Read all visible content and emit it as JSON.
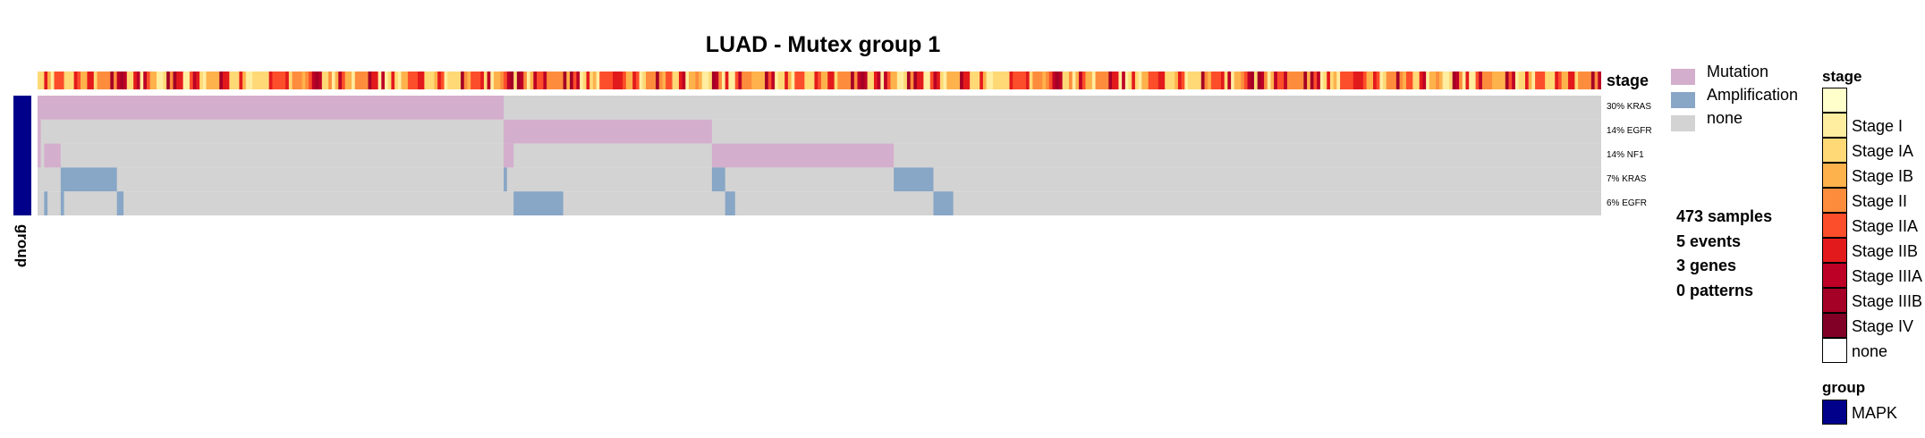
{
  "chart_data": {
    "type": "heatmap",
    "title": "LUAD - Mutex group 1",
    "n_samples": 473,
    "rows": [
      {
        "label": "30% KRAS",
        "gene": "KRAS",
        "percent": 30,
        "alteration": "Mutation",
        "segments": [
          {
            "start": 0,
            "end": 141,
            "type": "Mutation"
          }
        ]
      },
      {
        "label": "14% EGFR",
        "gene": "EGFR",
        "percent": 14,
        "alteration": "Mutation",
        "segments": [
          {
            "start": 0,
            "end": 1,
            "type": "Mutation"
          },
          {
            "start": 141,
            "end": 204,
            "type": "Mutation"
          }
        ]
      },
      {
        "label": "14% NF1",
        "gene": "NF1",
        "percent": 14,
        "alteration": "Mutation",
        "segments": [
          {
            "start": 0,
            "end": 1,
            "type": "Mutation"
          },
          {
            "start": 2,
            "end": 7,
            "type": "Mutation"
          },
          {
            "start": 141,
            "end": 144,
            "type": "Mutation"
          },
          {
            "start": 204,
            "end": 259,
            "type": "Mutation"
          }
        ]
      },
      {
        "label": "7% KRAS",
        "gene": "KRAS",
        "percent": 7,
        "alteration": "Amplification",
        "segments": [
          {
            "start": 7,
            "end": 24,
            "type": "Amplification"
          },
          {
            "start": 141,
            "end": 142,
            "type": "Amplification"
          },
          {
            "start": 204,
            "end": 208,
            "type": "Amplification"
          },
          {
            "start": 259,
            "end": 271,
            "type": "Amplification"
          }
        ]
      },
      {
        "label": "6% EGFR",
        "gene": "EGFR",
        "percent": 6,
        "alteration": "Amplification",
        "segments": [
          {
            "start": 2,
            "end": 3,
            "type": "Amplification"
          },
          {
            "start": 7,
            "end": 8,
            "type": "Amplification"
          },
          {
            "start": 24,
            "end": 26,
            "type": "Amplification"
          },
          {
            "start": 144,
            "end": 159,
            "type": "Amplification"
          },
          {
            "start": 208,
            "end": 211,
            "type": "Amplification"
          },
          {
            "start": 271,
            "end": 277,
            "type": "Amplification"
          }
        ]
      }
    ],
    "stage_track": {
      "label": "stage",
      "pattern": [
        2,
        5,
        3,
        7,
        1,
        4,
        6,
        2,
        3,
        5,
        8,
        1,
        4,
        2,
        6,
        3,
        5,
        7,
        2,
        4,
        1,
        3,
        6,
        5,
        2,
        8,
        4,
        3,
        1,
        5,
        6,
        2,
        7,
        4,
        3,
        5,
        1,
        2,
        6,
        4,
        8,
        3,
        5,
        2,
        4,
        7,
        1,
        6,
        3,
        5,
        2,
        4,
        1,
        3,
        6,
        8,
        5,
        2,
        4,
        3,
        7,
        1,
        5,
        6,
        2,
        4,
        3,
        5,
        1,
        7,
        6,
        2,
        8,
        4,
        3,
        5,
        1,
        2,
        6,
        4,
        5,
        3,
        7,
        2
      ]
    },
    "group_track": {
      "label": "group",
      "value": "MAPK"
    }
  },
  "legend_alterations": [
    {
      "label": "Mutation",
      "color": "#d4aecd"
    },
    {
      "label": "Amplification",
      "color": "#88a6c6"
    },
    {
      "label": "none",
      "color": "#d3d3d3"
    }
  ],
  "summary": {
    "samples": "473 samples",
    "events": "5 events",
    "genes": "3 genes",
    "patterns": "0 patterns"
  },
  "legend_stage": {
    "title": "stage",
    "items": [
      {
        "label": "",
        "color": "#ffffcc"
      },
      {
        "label": "Stage I",
        "color": "#ffeda0"
      },
      {
        "label": "Stage IA",
        "color": "#fed976"
      },
      {
        "label": "Stage IB",
        "color": "#feb24c"
      },
      {
        "label": "Stage II",
        "color": "#fd8d3c"
      },
      {
        "label": "Stage IIA",
        "color": "#fc4e2a"
      },
      {
        "label": "Stage IIB",
        "color": "#e31a1c"
      },
      {
        "label": "Stage IIIA",
        "color": "#bd0026"
      },
      {
        "label": "Stage IIIB",
        "color": "#a50026"
      },
      {
        "label": "Stage IV",
        "color": "#800026"
      },
      {
        "label": "none",
        "color": "#ffffff"
      }
    ]
  },
  "legend_group": {
    "title": "group",
    "items": [
      {
        "label": "MAPK",
        "color": "#00008b"
      }
    ]
  },
  "colors": {
    "mutation": "#d4aecd",
    "amplification": "#88a6c6",
    "none": "#d3d3d3",
    "group": "#00008b"
  }
}
